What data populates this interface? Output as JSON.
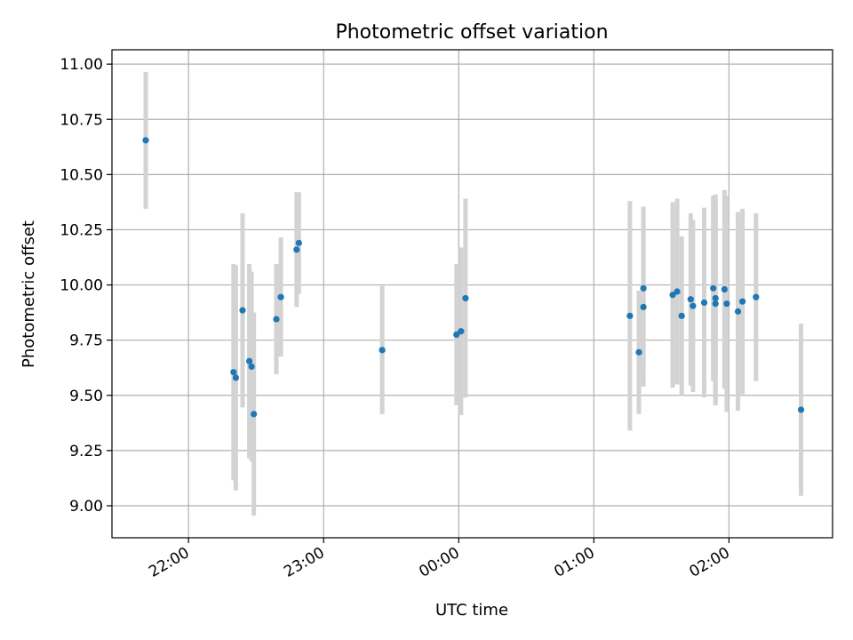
{
  "chart_data": {
    "type": "scatter",
    "title": "Photometric offset variation",
    "xlabel": "UTC time",
    "ylabel": "Photometric offset",
    "grid": true,
    "legend": "none",
    "x_ticks": [
      "22:00",
      "23:00",
      "00:00",
      "01:00",
      "02:00"
    ],
    "x_tick_values": [
      "22:00",
      "23:00",
      "00:00",
      "01:00",
      "02:00"
    ],
    "y_ticks": [
      "9.00",
      "9.25",
      "9.50",
      "9.75",
      "10.00",
      "10.25",
      "10.50",
      "10.75",
      "11.00"
    ],
    "ylim": [
      8.855,
      11.065
    ],
    "xlim": [
      "21:26",
      "02:46"
    ],
    "colors": {
      "points": "#1f77b4",
      "errorbars": "#d3d3d3",
      "grid": "#b0b0b0"
    },
    "series": [
      {
        "points": [
          {
            "x": "21:41",
            "y": 10.655,
            "err": 0.31
          },
          {
            "x": "22:20",
            "y": 9.605,
            "err": 0.49
          },
          {
            "x": "22:21",
            "y": 9.58,
            "err": 0.51
          },
          {
            "x": "22:24",
            "y": 9.885,
            "err": 0.44
          },
          {
            "x": "22:27",
            "y": 9.655,
            "err": 0.44
          },
          {
            "x": "22:28",
            "y": 9.63,
            "err": 0.43
          },
          {
            "x": "22:29",
            "y": 9.415,
            "err": 0.46
          },
          {
            "x": "22:39",
            "y": 9.845,
            "err": 0.25
          },
          {
            "x": "22:41",
            "y": 9.945,
            "err": 0.27
          },
          {
            "x": "22:48",
            "y": 10.16,
            "err": 0.26
          },
          {
            "x": "22:49",
            "y": 10.19,
            "err": 0.23
          },
          {
            "x": "23:26",
            "y": 9.705,
            "err": 0.29
          },
          {
            "x": "23:59",
            "y": 9.775,
            "err": 0.32
          },
          {
            "x": "00:01",
            "y": 9.79,
            "err": 0.38
          },
          {
            "x": "00:03",
            "y": 9.94,
            "err": 0.45
          },
          {
            "x": "01:16",
            "y": 9.86,
            "err": 0.52
          },
          {
            "x": "01:20",
            "y": 9.695,
            "err": 0.28
          },
          {
            "x": "01:22",
            "y": 9.9,
            "err": 0.36
          },
          {
            "x": "01:22",
            "y": 9.985,
            "err": 0.37
          },
          {
            "x": "01:35",
            "y": 9.955,
            "err": 0.42
          },
          {
            "x": "01:37",
            "y": 9.97,
            "err": 0.42
          },
          {
            "x": "01:39",
            "y": 9.86,
            "err": 0.36
          },
          {
            "x": "01:43",
            "y": 9.935,
            "err": 0.39
          },
          {
            "x": "01:44",
            "y": 9.905,
            "err": 0.39
          },
          {
            "x": "01:49",
            "y": 9.92,
            "err": 0.43
          },
          {
            "x": "01:53",
            "y": 9.985,
            "err": 0.42
          },
          {
            "x": "01:54",
            "y": 9.915,
            "err": 0.46
          },
          {
            "x": "01:54",
            "y": 9.94,
            "err": 0.47
          },
          {
            "x": "01:58",
            "y": 9.98,
            "err": 0.45
          },
          {
            "x": "01:59",
            "y": 9.915,
            "err": 0.49
          },
          {
            "x": "02:04",
            "y": 9.88,
            "err": 0.45
          },
          {
            "x": "02:06",
            "y": 9.925,
            "err": 0.42
          },
          {
            "x": "02:12",
            "y": 9.945,
            "err": 0.38
          },
          {
            "x": "02:32",
            "y": 9.435,
            "err": 0.39
          }
        ]
      }
    ]
  }
}
